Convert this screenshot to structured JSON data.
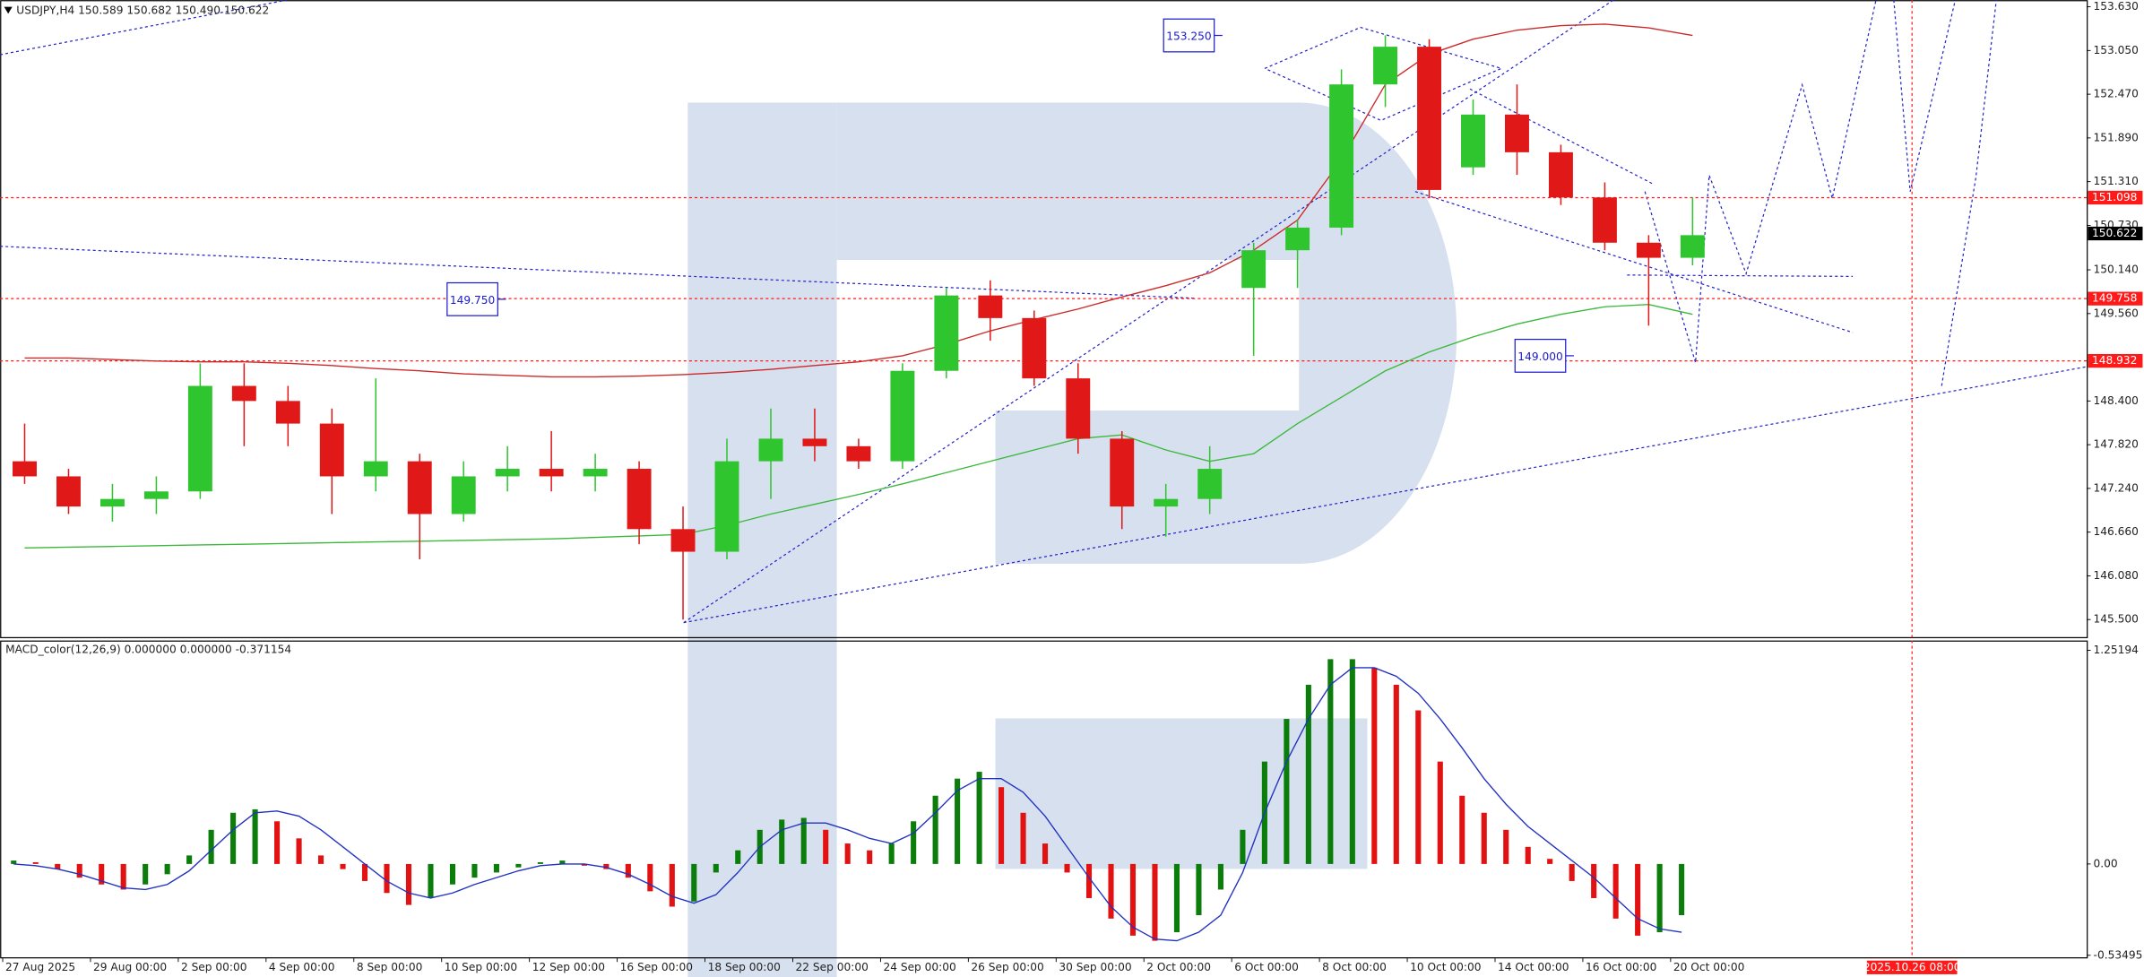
{
  "chart_data": [
    {
      "type": "candlestick",
      "title": "USDJPY,H4  150.589 150.682 150.490 150.622",
      "x": [
        3,
        9,
        15,
        21,
        27,
        33,
        39,
        45,
        51,
        57,
        63,
        69,
        75,
        81,
        87,
        93,
        99,
        105,
        111,
        117,
        123,
        129,
        135,
        141,
        147,
        153,
        159,
        165,
        171,
        177,
        183,
        189,
        195,
        201,
        207,
        213,
        219,
        225,
        231
      ],
      "open": [
        147.6,
        147.4,
        147.0,
        147.1,
        147.2,
        148.6,
        148.4,
        148.1,
        147.4,
        147.6,
        146.9,
        147.4,
        147.5,
        147.4,
        147.5,
        146.7,
        146.4,
        147.6,
        147.9,
        147.8,
        147.6,
        148.8,
        149.8,
        149.5,
        148.7,
        147.9,
        147.0,
        147.1,
        149.9,
        150.4,
        150.7,
        152.6,
        153.1,
        151.5,
        152.2,
        151.7,
        151.1,
        150.5,
        150.3
      ],
      "high": [
        148.1,
        147.5,
        147.3,
        147.4,
        148.9,
        148.9,
        148.6,
        148.3,
        148.7,
        147.7,
        147.6,
        147.8,
        148.0,
        147.7,
        147.6,
        147.0,
        147.9,
        148.3,
        148.3,
        147.9,
        148.9,
        149.9,
        150.0,
        149.6,
        148.9,
        148.0,
        147.3,
        147.8,
        150.5,
        150.8,
        152.8,
        153.25,
        153.2,
        152.4,
        152.6,
        151.8,
        151.3,
        150.6,
        151.1
      ],
      "low": [
        147.3,
        146.9,
        146.8,
        146.9,
        147.1,
        147.8,
        147.8,
        146.9,
        147.2,
        146.3,
        146.8,
        147.2,
        147.2,
        147.2,
        146.5,
        145.5,
        146.3,
        147.1,
        147.6,
        147.5,
        147.5,
        148.7,
        149.2,
        148.6,
        147.7,
        146.7,
        146.6,
        146.9,
        149.0,
        149.9,
        150.6,
        152.3,
        151.1,
        151.4,
        151.4,
        151.0,
        150.4,
        149.4,
        150.2
      ],
      "close": [
        147.4,
        147.0,
        147.1,
        147.2,
        148.6,
        148.4,
        148.1,
        147.4,
        147.6,
        146.9,
        147.4,
        147.5,
        147.4,
        147.5,
        146.7,
        146.4,
        147.6,
        147.9,
        147.8,
        147.6,
        148.8,
        149.8,
        149.5,
        148.7,
        147.9,
        147.0,
        147.1,
        147.5,
        150.4,
        150.7,
        152.6,
        153.1,
        151.2,
        152.2,
        151.7,
        151.1,
        150.5,
        150.3,
        150.6
      ],
      "up_color": "#2ec52e",
      "down_color": "#e01818",
      "overlays": [
        {
          "color": "#cc2a2a",
          "values": [
            148.97,
            148.97,
            148.95,
            148.93,
            148.92,
            148.92,
            148.9,
            148.87,
            148.83,
            148.8,
            148.76,
            148.74,
            148.72,
            148.72,
            148.73,
            148.75,
            148.78,
            148.82,
            148.87,
            148.92,
            149.0,
            149.15,
            149.33,
            149.48,
            149.62,
            149.78,
            149.93,
            150.1,
            150.4,
            150.8,
            151.6,
            152.6,
            153.0,
            153.2,
            153.32,
            153.38,
            153.4,
            153.35,
            153.25
          ]
        },
        {
          "color": "#3cb83c",
          "values": [
            146.45,
            146.46,
            146.47,
            146.48,
            146.49,
            146.5,
            146.51,
            146.52,
            146.53,
            146.54,
            146.55,
            146.56,
            146.57,
            146.59,
            146.61,
            146.63,
            146.75,
            146.9,
            147.03,
            147.16,
            147.3,
            147.45,
            147.6,
            147.75,
            147.9,
            147.95,
            147.75,
            147.6,
            147.7,
            148.1,
            148.45,
            148.8,
            149.05,
            149.25,
            149.42,
            149.55,
            149.65,
            149.68,
            149.55
          ]
        }
      ],
      "xlim": [
        -0.37,
        284.86
      ],
      "ylim": [
        145.26,
        153.72
      ],
      "yticks": [
        {
          "value": 153.63,
          "label": "153.630"
        },
        {
          "value": 153.05,
          "label": "153.050"
        },
        {
          "value": 152.47,
          "label": "152.470"
        },
        {
          "value": 151.89,
          "label": "151.890"
        },
        {
          "value": 151.31,
          "label": "151.310"
        },
        {
          "value": 150.73,
          "label": "150.730"
        },
        {
          "value": 150.14,
          "label": "150.140"
        },
        {
          "value": 149.56,
          "label": "149.560"
        },
        {
          "value": 148.4,
          "label": "148.400"
        },
        {
          "value": 147.82,
          "label": "147.820"
        },
        {
          "value": 147.24,
          "label": "147.240"
        },
        {
          "value": 146.66,
          "label": "146.660"
        },
        {
          "value": 146.08,
          "label": "146.080"
        },
        {
          "value": 145.5,
          "label": "145.500"
        }
      ],
      "levels": [
        {
          "value": 151.098,
          "color": "#ff1a1a"
        },
        {
          "value": 149.758,
          "color": "#ff1a1a"
        },
        {
          "value": 148.932,
          "color": "#ff1a1a"
        }
      ],
      "current_price": {
        "value": 150.622,
        "color": "#000000"
      },
      "annotations": [
        {
          "value": 153.25,
          "label": "153.250"
        },
        {
          "value": 149.75,
          "label": "149.750"
        },
        {
          "value": 149.0,
          "label": "149.000"
        }
      ],
      "annotation_color": "#1a1ad0"
    },
    {
      "type": "macd_histogram",
      "title": "MACD_color(12,26,9) 0.000000 0.000000 -0.371154",
      "x": [
        1.5,
        4.5,
        7.5,
        10.5,
        13.5,
        16.5,
        19.5,
        22.5,
        25.5,
        28.5,
        31.5,
        34.5,
        37.5,
        40.5,
        43.5,
        46.5,
        49.5,
        52.5,
        55.5,
        58.5,
        61.5,
        64.5,
        67.5,
        70.5,
        73.5,
        76.5,
        79.5,
        82.5,
        85.5,
        88.5,
        91.5,
        94.5,
        97.5,
        100.5,
        103.5,
        106.5,
        109.5,
        112.5,
        115.5,
        118.5,
        121.5,
        124.5,
        127.5,
        130.5,
        133.5,
        136.5,
        139.5,
        142.5,
        145.5,
        148.5,
        151.5,
        154.5,
        157.5,
        160.5,
        163.5,
        166.5,
        169.5,
        172.5,
        175.5,
        178.5,
        181.5,
        184.5,
        187.5,
        190.5,
        193.5,
        196.5,
        199.5,
        202.5,
        205.5,
        208.5,
        211.5,
        214.5,
        217.5,
        220.5,
        223.5,
        226.5,
        229.5
      ],
      "values": [
        0.02,
        0.01,
        -0.03,
        -0.08,
        -0.12,
        -0.15,
        -0.12,
        -0.06,
        0.05,
        0.2,
        0.3,
        0.32,
        0.25,
        0.15,
        0.05,
        -0.03,
        -0.1,
        -0.17,
        -0.24,
        -0.2,
        -0.12,
        -0.08,
        -0.05,
        -0.02,
        0.01,
        0.02,
        -0.01,
        -0.03,
        -0.08,
        -0.16,
        -0.25,
        -0.22,
        -0.05,
        0.08,
        0.2,
        0.26,
        0.27,
        0.2,
        0.12,
        0.08,
        0.12,
        0.25,
        0.4,
        0.5,
        0.54,
        0.45,
        0.3,
        0.12,
        -0.05,
        -0.2,
        -0.32,
        -0.42,
        -0.45,
        -0.4,
        -0.3,
        -0.15,
        0.2,
        0.6,
        0.85,
        1.05,
        1.2,
        1.2,
        1.15,
        1.05,
        0.9,
        0.6,
        0.4,
        0.3,
        0.2,
        0.1,
        0.03,
        -0.1,
        -0.2,
        -0.32,
        -0.42,
        -0.4,
        -0.3
      ],
      "signal": [
        0.0,
        -0.01,
        -0.03,
        -0.06,
        -0.1,
        -0.14,
        -0.15,
        -0.12,
        -0.04,
        0.08,
        0.2,
        0.3,
        0.31,
        0.28,
        0.2,
        0.1,
        0.0,
        -0.1,
        -0.17,
        -0.2,
        -0.17,
        -0.12,
        -0.08,
        -0.04,
        -0.01,
        0.0,
        0.0,
        -0.02,
        -0.06,
        -0.12,
        -0.19,
        -0.23,
        -0.18,
        -0.05,
        0.1,
        0.2,
        0.24,
        0.24,
        0.2,
        0.15,
        0.12,
        0.18,
        0.3,
        0.43,
        0.5,
        0.5,
        0.42,
        0.28,
        0.1,
        -0.08,
        -0.25,
        -0.37,
        -0.44,
        -0.45,
        -0.4,
        -0.3,
        -0.05,
        0.3,
        0.6,
        0.85,
        1.05,
        1.15,
        1.15,
        1.1,
        1.0,
        0.85,
        0.68,
        0.5,
        0.35,
        0.22,
        0.12,
        0.02,
        -0.08,
        -0.2,
        -0.32,
        -0.38,
        -0.4
      ],
      "up_color": "#0b7d0b",
      "down_color": "#e21212",
      "signal_color": "#2232c0",
      "xlim": [
        -0.37,
        284.86
      ],
      "ylim": [
        -0.55,
        1.31
      ],
      "yticks": [
        1.25194,
        {
          "value": 0,
          "label": "0.00"
        },
        -0.53495
      ],
      "xticks": [
        {
          "value": 0,
          "label": "27 Aug 2025"
        },
        {
          "value": 12,
          "label": "29 Aug 00:00"
        },
        {
          "value": 24,
          "label": "2 Sep 00:00"
        },
        {
          "value": 36,
          "label": "4 Sep 00:00"
        },
        {
          "value": 48,
          "label": "8 Sep 00:00"
        },
        {
          "value": 60,
          "label": "10 Sep 00:00"
        },
        {
          "value": 72,
          "label": "12 Sep 00:00"
        },
        {
          "value": 84,
          "label": "16 Sep 00:00"
        },
        {
          "value": 96,
          "label": "18 Sep 00:00"
        },
        {
          "value": 108,
          "label": "22 Sep 00:00"
        },
        {
          "value": 120,
          "label": "24 Sep 00:00"
        },
        {
          "value": 132,
          "label": "26 Sep 00:00"
        },
        {
          "value": 144,
          "label": "30 Sep 00:00"
        },
        {
          "value": 156,
          "label": "2 Oct 00:00"
        },
        {
          "value": 168,
          "label": "6 Oct 00:00"
        },
        {
          "value": 180,
          "label": "8 Oct 00:00"
        },
        {
          "value": 192,
          "label": "10 Oct 00:00"
        },
        {
          "value": 204,
          "label": "14 Oct 00:00"
        },
        {
          "value": 216,
          "label": "16 Oct 00:00"
        },
        {
          "value": 228,
          "label": "20 Oct 00:00"
        }
      ],
      "marker": {
        "value": 261,
        "label": "2025.10.26 08:00",
        "color": "#ff1a1a"
      }
    }
  ]
}
